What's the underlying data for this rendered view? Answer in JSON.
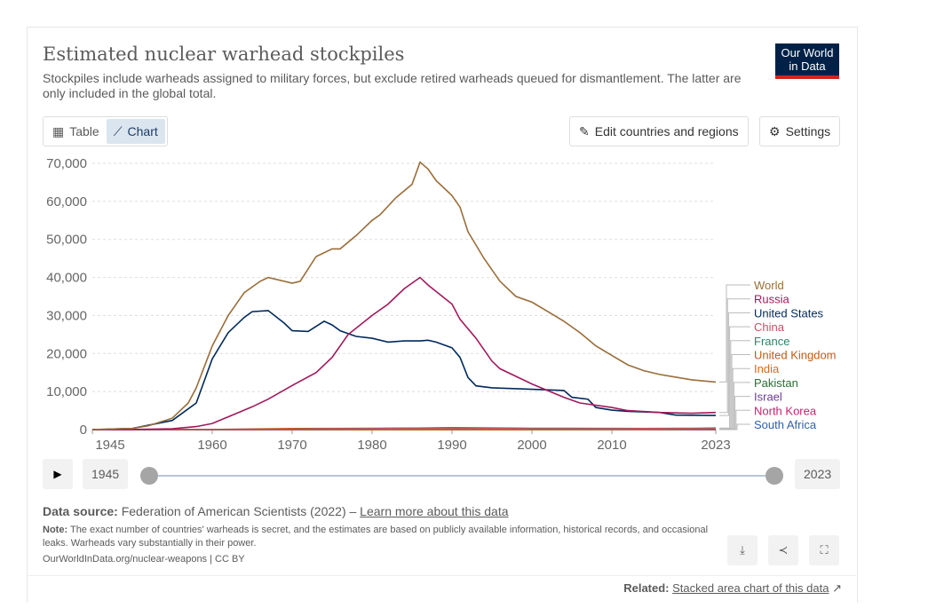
{
  "header": {
    "title": "Estimated nuclear warhead stockpiles",
    "subtitle": "Stockpiles include warheads assigned to military forces, but exclude retired warheads queued for dismantlement. The latter are only included in the global total.",
    "logo": "Our World in Data"
  },
  "toolbar": {
    "table_label": "Table",
    "chart_label": "Chart",
    "edit_label": "Edit countries and regions",
    "settings_label": "Settings"
  },
  "timeline": {
    "start": "1945",
    "end": "2023",
    "start_fraction": 0,
    "end_fraction": 1
  },
  "footer": {
    "source_label": "Data source:",
    "source": "Federation of American Scientists (2022) – ",
    "learn_more": "Learn more about this data",
    "note_label": "Note:",
    "note": "The exact number of countries' warheads is secret, and the estimates are based on publicly available information, historical records, and occasional leaks. Warheads vary substantially in their power.",
    "url": "OurWorldInData.org/nuclear-weapons | CC BY",
    "related_label": "Related:",
    "related_link": "Stacked area chart of this data"
  },
  "chart_data": {
    "type": "line",
    "title": "Estimated nuclear warhead stockpiles",
    "xlabel": "",
    "ylabel": "",
    "xlim": [
      1945,
      2023
    ],
    "ylim": [
      0,
      70000
    ],
    "yticks": [
      0,
      10000,
      20000,
      30000,
      40000,
      50000,
      60000,
      70000
    ],
    "ytick_labels": [
      "0",
      "10,000",
      "20,000",
      "30,000",
      "40,000",
      "50,000",
      "60,000",
      "70,000"
    ],
    "xticks": [
      1945,
      1960,
      1970,
      1980,
      1990,
      2000,
      2010,
      2023
    ],
    "grid": true,
    "legend": "right",
    "series": [
      {
        "name": "World",
        "color": "#996d39",
        "x": [
          1945,
          1950,
          1952,
          1955,
          1957,
          1958,
          1960,
          1962,
          1964,
          1966,
          1967,
          1970,
          1971,
          1973,
          1975,
          1976,
          1978,
          1980,
          1981,
          1983,
          1985,
          1986,
          1987,
          1988,
          1990,
          1991,
          1992,
          1994,
          1996,
          1998,
          2000,
          2002,
          2004,
          2006,
          2008,
          2010,
          2012,
          2014,
          2016,
          2018,
          2020,
          2023
        ],
        "y": [
          2,
          300,
          1000,
          3000,
          7000,
          11000,
          22000,
          30000,
          36000,
          39000,
          40000,
          38500,
          39000,
          45500,
          47500,
          47500,
          51000,
          55000,
          56500,
          61000,
          64500,
          70300,
          68500,
          65500,
          61500,
          58500,
          52000,
          45000,
          39000,
          35000,
          33500,
          31000,
          28500,
          25500,
          22000,
          19500,
          17000,
          15500,
          14500,
          13800,
          13100,
          12500
        ]
      },
      {
        "name": "Russia",
        "color": "#a2185b",
        "x": [
          1945,
          1949,
          1955,
          1958,
          1960,
          1965,
          1967,
          1970,
          1973,
          1975,
          1977,
          1980,
          1982,
          1984,
          1986,
          1987,
          1990,
          1991,
          1993,
          1995,
          1996,
          1998,
          2000,
          2004,
          2006,
          2010,
          2012,
          2016,
          2020,
          2023
        ],
        "y": [
          0,
          1,
          200,
          800,
          1600,
          6000,
          8000,
          11600,
          15000,
          19000,
          25000,
          30000,
          33000,
          37000,
          40000,
          38000,
          33000,
          29000,
          24000,
          18000,
          16000,
          14000,
          12000,
          8500,
          7000,
          5800,
          5000,
          4500,
          4300,
          4500
        ]
      },
      {
        "name": "United States",
        "color": "#00295b",
        "x": [
          1945,
          1950,
          1955,
          1958,
          1960,
          1962,
          1964,
          1965,
          1967,
          1969,
          1970,
          1972,
          1974,
          1975,
          1976,
          1978,
          1980,
          1982,
          1984,
          1986,
          1987,
          1988,
          1990,
          1991,
          1992,
          1993,
          1995,
          2000,
          2004,
          2005,
          2007,
          2008,
          2010,
          2012,
          2016,
          2018,
          2023
        ],
        "y": [
          2,
          300,
          2400,
          7000,
          18600,
          25500,
          29500,
          31000,
          31300,
          28000,
          26000,
          25800,
          28500,
          27500,
          26000,
          24500,
          24000,
          23000,
          23300,
          23300,
          23500,
          23000,
          21500,
          19000,
          13700,
          11500,
          11000,
          10600,
          10300,
          8500,
          8000,
          5800,
          5100,
          4800,
          4500,
          3800,
          3700
        ]
      },
      {
        "name": "China",
        "color": "#c15065",
        "x": [
          1945,
          1964,
          1970,
          1980,
          1990,
          2000,
          2010,
          2020,
          2023
        ],
        "y": [
          0,
          1,
          75,
          280,
          430,
          230,
          240,
          350,
          410
        ]
      },
      {
        "name": "France",
        "color": "#2c8465",
        "x": [
          1945,
          1960,
          1970,
          1980,
          1990,
          2000,
          2010,
          2023
        ],
        "y": [
          0,
          1,
          36,
          250,
          505,
          350,
          300,
          290
        ]
      },
      {
        "name": "United Kingdom",
        "color": "#be5915",
        "x": [
          1945,
          1953,
          1960,
          1970,
          1980,
          1990,
          2000,
          2010,
          2023
        ],
        "y": [
          0,
          1,
          30,
          280,
          350,
          420,
          280,
          225,
          225
        ]
      },
      {
        "name": "India",
        "color": "#cf6b20",
        "x": [
          1945,
          1998,
          2010,
          2023
        ],
        "y": [
          0,
          1,
          70,
          164
        ]
      },
      {
        "name": "Pakistan",
        "color": "#286e33",
        "x": [
          1945,
          1998,
          2010,
          2023
        ],
        "y": [
          0,
          1,
          70,
          170
        ]
      },
      {
        "name": "Israel",
        "color": "#6d3e91",
        "x": [
          1945,
          1967,
          1990,
          2023
        ],
        "y": [
          0,
          2,
          60,
          90
        ]
      },
      {
        "name": "North Korea",
        "color": "#c4236e",
        "x": [
          1945,
          2006,
          2023
        ],
        "y": [
          0,
          1,
          30
        ]
      },
      {
        "name": "South Africa",
        "color": "#3360a9",
        "x": [
          1945,
          1979,
          1989,
          1991,
          2023
        ],
        "y": [
          0,
          1,
          6,
          0,
          0
        ]
      }
    ]
  }
}
